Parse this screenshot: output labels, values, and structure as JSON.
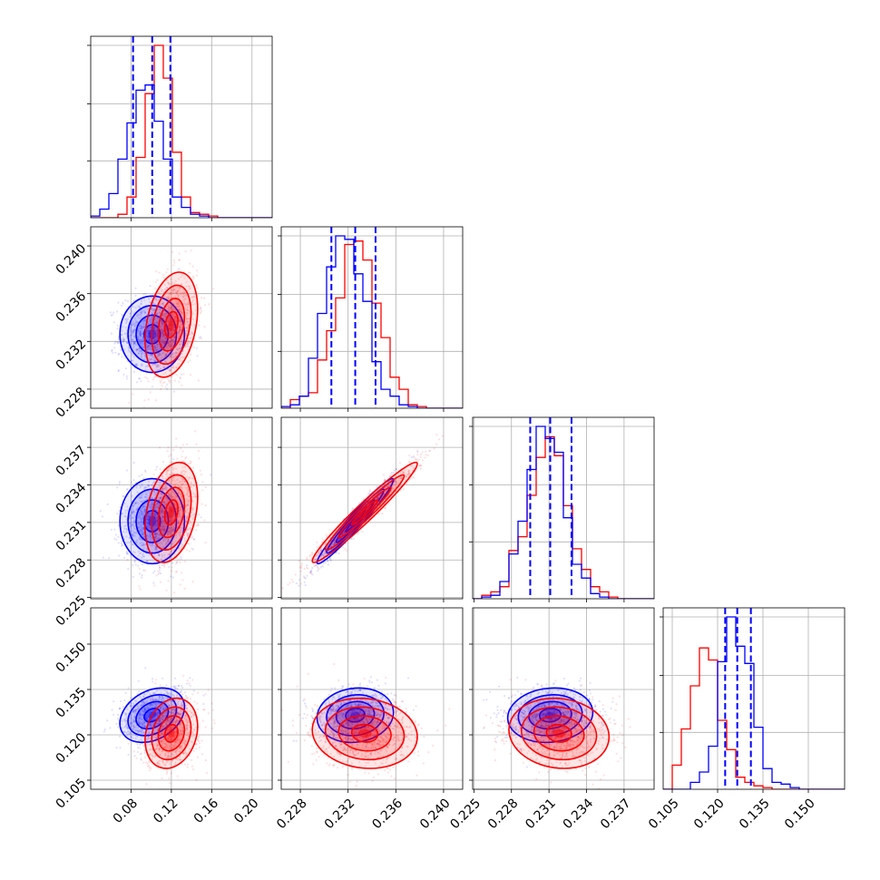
{
  "chart_data": {
    "type": "corner",
    "n_params": 4,
    "grid": true,
    "colors": {
      "blue": "#0000ff",
      "red": "#ff0000"
    },
    "params": [
      {
        "range": [
          0.04,
          0.22
        ],
        "ticks": [
          0.08,
          0.12,
          0.16,
          0.2
        ],
        "tick_labels": [
          "0.08",
          "0.12",
          "0.16",
          "0.20"
        ]
      },
      {
        "range": [
          0.2264,
          0.2416
        ],
        "ticks": [
          0.228,
          0.232,
          0.236,
          0.24
        ],
        "tick_labels": [
          "0.228",
          "0.232",
          "0.236",
          "0.240"
        ]
      },
      {
        "range": [
          0.2249,
          0.2394
        ],
        "ticks": [
          0.225,
          0.228,
          0.231,
          0.234,
          0.237
        ],
        "tick_labels": [
          "0.225",
          "0.228",
          "0.231",
          "0.234",
          "0.237"
        ]
      },
      {
        "range": [
          0.102,
          0.162
        ],
        "ticks": [
          0.105,
          0.12,
          0.135,
          0.15
        ],
        "tick_labels": [
          "0.105",
          "0.120",
          "0.135",
          "0.150"
        ]
      }
    ],
    "series": [
      {
        "color": "blue",
        "mean": [
          0.101,
          0.2326,
          0.2311,
          0.1265
        ],
        "sd": [
          0.016,
          0.0016,
          0.0017,
          0.0045
        ],
        "corr": [
          [
            1,
            0,
            0,
            0.3
          ],
          [
            0,
            1,
            0.97,
            0.1
          ],
          [
            0,
            0.97,
            1,
            0.1
          ],
          [
            0.3,
            0.1,
            0.1,
            1
          ]
        ],
        "quantiles": [
          [
            0.082,
            0.101,
            0.119
          ],
          [
            0.2306,
            0.2326,
            0.2343
          ],
          [
            0.2295,
            0.2311,
            0.2328
          ],
          [
            0.1225,
            0.1265,
            0.131
          ]
        ]
      },
      {
        "color": "red",
        "mean": [
          0.12,
          0.2334,
          0.2318,
          0.1205
        ],
        "sd": [
          0.013,
          0.0022,
          0.002,
          0.0058
        ],
        "corr": [
          [
            1,
            0.3,
            0.3,
            0.2
          ],
          [
            0.3,
            1,
            0.97,
            -0.1
          ],
          [
            0.3,
            0.97,
            1,
            -0.1
          ],
          [
            0.2,
            -0.1,
            -0.1,
            1
          ]
        ]
      }
    ],
    "histograms": [
      {
        "edges_range": [
          0.04,
          0.22
        ],
        "bins": 20,
        "blue": [
          0.01,
          0.05,
          0.14,
          0.34,
          0.55,
          0.74,
          0.77,
          0.56,
          0.34,
          0.12,
          0.06,
          0.02,
          0.01,
          0,
          0,
          0,
          0,
          0,
          0,
          0
        ],
        "red": [
          0,
          0,
          0,
          0.02,
          0.12,
          0.35,
          0.72,
          1.0,
          0.81,
          0.38,
          0.12,
          0.03,
          0.02,
          0.01,
          0,
          0,
          0,
          0,
          0,
          0
        ]
      },
      {
        "edges_range": [
          0.2264,
          0.2416
        ],
        "bins": 20,
        "blue": [
          0.01,
          0.02,
          0.07,
          0.29,
          0.55,
          0.82,
          1.0,
          0.98,
          0.78,
          0.62,
          0.27,
          0.11,
          0.07,
          0.02,
          0.01,
          0,
          0,
          0,
          0,
          0
        ],
        "red": [
          0,
          0.05,
          0.07,
          0.09,
          0.28,
          0.45,
          0.64,
          0.95,
          0.97,
          0.86,
          0.61,
          0.41,
          0.18,
          0.11,
          0.02,
          0.01,
          0,
          0,
          0,
          0
        ]
      },
      {
        "edges_range": [
          0.2249,
          0.2394
        ],
        "bins": 20,
        "blue": [
          0,
          0.01,
          0.02,
          0.1,
          0.26,
          0.45,
          0.75,
          1.0,
          0.93,
          0.85,
          0.47,
          0.2,
          0.12,
          0.03,
          0.01,
          0,
          0,
          0,
          0,
          0
        ],
        "red": [
          0,
          0.02,
          0.04,
          0.07,
          0.28,
          0.36,
          0.6,
          0.82,
          0.94,
          0.83,
          0.54,
          0.29,
          0.17,
          0.07,
          0.04,
          0.01,
          0,
          0,
          0,
          0
        ]
      },
      {
        "edges_range": [
          0.102,
          0.162
        ],
        "bins": 20,
        "blue": [
          0,
          0,
          0,
          0.04,
          0.1,
          0.25,
          0.74,
          1.0,
          0.83,
          0.73,
          0.36,
          0.12,
          0.04,
          0.03,
          0.01,
          0,
          0,
          0,
          0,
          0
        ],
        "red": [
          0,
          0.14,
          0.35,
          0.6,
          0.82,
          0.75,
          0.4,
          0.23,
          0.07,
          0.04,
          0.02,
          0.01,
          0,
          0,
          0,
          0,
          0,
          0,
          0,
          0
        ]
      }
    ]
  }
}
